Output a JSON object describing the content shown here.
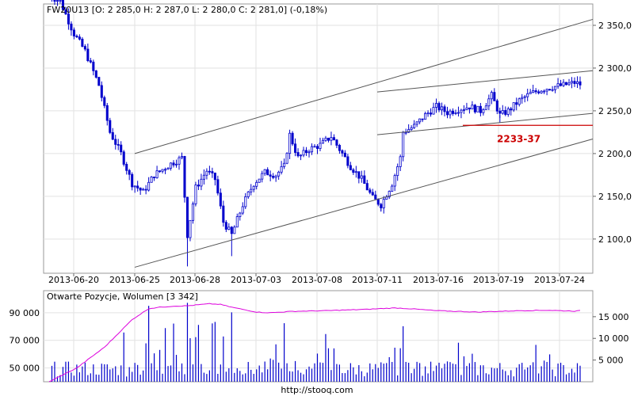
{
  "chart_data": [
    {
      "type": "candlestick",
      "title": "FW20U13 [O: 2 285,0  H: 2 287,0  L: 2 280,0  C: 2 281,0] (-0,18%)",
      "ylim": [
        2060,
        2375
      ],
      "y_ticks": [
        2100,
        2150,
        2200,
        2250,
        2300,
        2350
      ],
      "y_tick_labels": [
        "2 100,0",
        "2 150,0",
        "2 200,0",
        "2 250,0",
        "2 300,0",
        "2 350,0"
      ],
      "x_tick_labels": [
        "2013-06-20",
        "2013-06-25",
        "2013-06-28",
        "2013-07-03",
        "2013-07-08",
        "2013-07-11",
        "2013-07-16",
        "2013-07-19",
        "2013-07-24"
      ],
      "grid": true,
      "series_color": "#0000cc",
      "close_path": [
        {
          "i": 0,
          "v": 2385
        },
        {
          "i": 4,
          "v": 2378
        },
        {
          "i": 9,
          "v": 2340
        },
        {
          "i": 13,
          "v": 2320
        },
        {
          "i": 18,
          "v": 2280
        },
        {
          "i": 22,
          "v": 2225
        },
        {
          "i": 26,
          "v": 2200
        },
        {
          "i": 30,
          "v": 2165
        },
        {
          "i": 34,
          "v": 2155
        },
        {
          "i": 38,
          "v": 2175
        },
        {
          "i": 44,
          "v": 2188
        },
        {
          "i": 48,
          "v": 2195
        },
        {
          "i": 50,
          "v": 2105
        },
        {
          "i": 53,
          "v": 2160
        },
        {
          "i": 57,
          "v": 2180
        },
        {
          "i": 60,
          "v": 2170
        },
        {
          "i": 63,
          "v": 2120
        },
        {
          "i": 66,
          "v": 2105
        },
        {
          "i": 70,
          "v": 2140
        },
        {
          "i": 74,
          "v": 2165
        },
        {
          "i": 78,
          "v": 2178
        },
        {
          "i": 82,
          "v": 2175
        },
        {
          "i": 85,
          "v": 2185
        },
        {
          "i": 87,
          "v": 2222
        },
        {
          "i": 90,
          "v": 2195
        },
        {
          "i": 94,
          "v": 2205
        },
        {
          "i": 98,
          "v": 2210
        },
        {
          "i": 102,
          "v": 2220
        },
        {
          "i": 105,
          "v": 2205
        },
        {
          "i": 109,
          "v": 2185
        },
        {
          "i": 113,
          "v": 2170
        },
        {
          "i": 117,
          "v": 2148
        },
        {
          "i": 120,
          "v": 2140
        },
        {
          "i": 124,
          "v": 2165
        },
        {
          "i": 127,
          "v": 2195
        },
        {
          "i": 128,
          "v": 2225
        },
        {
          "i": 132,
          "v": 2232
        },
        {
          "i": 136,
          "v": 2245
        },
        {
          "i": 140,
          "v": 2255
        },
        {
          "i": 144,
          "v": 2248
        },
        {
          "i": 148,
          "v": 2252
        },
        {
          "i": 152,
          "v": 2255
        },
        {
          "i": 156,
          "v": 2250
        },
        {
          "i": 160,
          "v": 2268
        },
        {
          "i": 163,
          "v": 2245
        },
        {
          "i": 166,
          "v": 2250
        },
        {
          "i": 170,
          "v": 2262
        },
        {
          "i": 174,
          "v": 2270
        },
        {
          "i": 178,
          "v": 2275
        },
        {
          "i": 182,
          "v": 2278
        },
        {
          "i": 186,
          "v": 2280
        },
        {
          "i": 190,
          "v": 2283
        },
        {
          "i": 192,
          "v": 2281
        }
      ],
      "trendlines": [
        {
          "from": {
            "x": "2013-06-25",
            "y": 2200
          },
          "to": {
            "x": "2013-07-26",
            "y": 2357
          },
          "color": "#555555"
        },
        {
          "from": {
            "x": "2013-06-25",
            "y": 2067
          },
          "to": {
            "x": "2013-07-26",
            "y": 2217
          },
          "color": "#555555"
        },
        {
          "from": {
            "x": "2013-07-11",
            "y": 2272
          },
          "to": {
            "x": "2013-07-26",
            "y": 2297
          },
          "color": "#555555"
        },
        {
          "from": {
            "x": "2013-07-11",
            "y": 2222
          },
          "to": {
            "x": "2013-07-26",
            "y": 2247
          },
          "color": "#555555"
        }
      ],
      "hline": {
        "y": 2233,
        "from_x": "2013-07-17",
        "color": "#cc0000"
      },
      "annotation": {
        "text": "2233-37",
        "color": "#cc0000"
      }
    },
    {
      "type": "bar+line",
      "title": "Otwarte Pozycje, Wolumen [3 342]",
      "left_ticks": [
        50000,
        70000,
        90000
      ],
      "left_tick_labels": [
        "50 000",
        "70 000",
        "90 000"
      ],
      "right_ticks": [
        5000,
        10000,
        15000
      ],
      "right_tick_labels": [
        "5 000",
        "10 000",
        "15 000"
      ],
      "left_range": [
        40000,
        106000
      ],
      "right_range": [
        0,
        21000
      ],
      "volume_color": "#0000cc",
      "oi_color": "#dd00dd",
      "oi_path": [
        {
          "i": 0,
          "v": 40000
        },
        {
          "i": 10,
          "v": 50000
        },
        {
          "i": 20,
          "v": 65000
        },
        {
          "i": 30,
          "v": 85000
        },
        {
          "i": 36,
          "v": 93000
        },
        {
          "i": 40,
          "v": 94000
        },
        {
          "i": 45,
          "v": 94800
        },
        {
          "i": 50,
          "v": 95000
        },
        {
          "i": 58,
          "v": 96500
        },
        {
          "i": 62,
          "v": 96000
        },
        {
          "i": 66,
          "v": 94000
        },
        {
          "i": 75,
          "v": 90500
        },
        {
          "i": 80,
          "v": 90000
        },
        {
          "i": 88,
          "v": 91000
        },
        {
          "i": 100,
          "v": 91500
        },
        {
          "i": 115,
          "v": 92500
        },
        {
          "i": 125,
          "v": 93500
        },
        {
          "i": 130,
          "v": 93000
        },
        {
          "i": 140,
          "v": 91500
        },
        {
          "i": 155,
          "v": 90500
        },
        {
          "i": 170,
          "v": 91500
        },
        {
          "i": 180,
          "v": 91800
        },
        {
          "i": 190,
          "v": 91200
        },
        {
          "i": 192,
          "v": 91500
        }
      ],
      "volume_peaks": [
        {
          "i": 36,
          "v": 17500
        },
        {
          "i": 50,
          "v": 18200
        },
        {
          "i": 66,
          "v": 16000
        },
        {
          "i": 85,
          "v": 13500
        },
        {
          "i": 100,
          "v": 11000
        },
        {
          "i": 128,
          "v": 12800
        },
        {
          "i": 148,
          "v": 9000
        },
        {
          "i": 176,
          "v": 8500
        }
      ]
    }
  ],
  "footer": {
    "source": "http://stooq.com"
  }
}
